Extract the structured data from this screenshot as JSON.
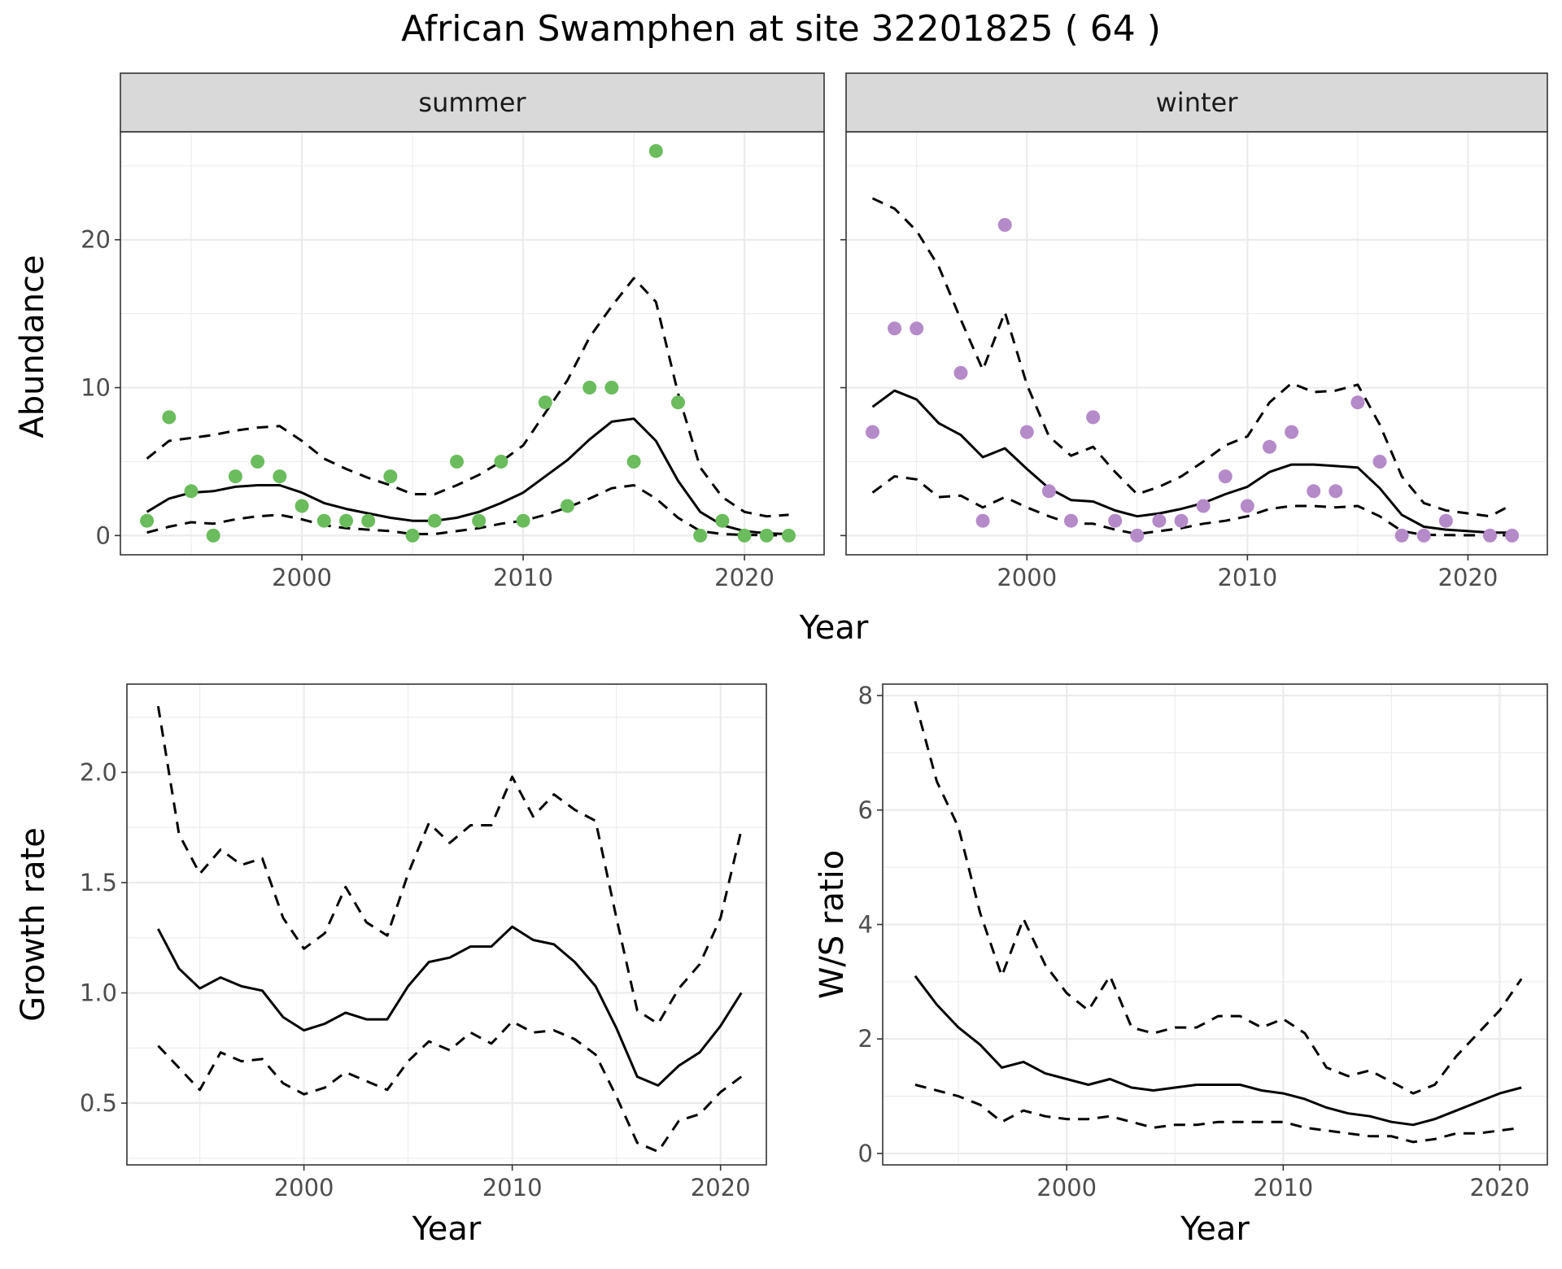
{
  "title": "African Swamphen at site 32201825 ( 64 )",
  "colors": {
    "summer_points": "#6abc5c",
    "winter_points": "#b58ac9",
    "lines": "#000000"
  },
  "chart_data": [
    {
      "id": "abundance-summer",
      "type": "scatter",
      "facet": "summer",
      "xlabel": "Year",
      "ylabel": "Abundance",
      "xlim": [
        1991.8,
        2023.6
      ],
      "ylim": [
        -1.3,
        27.3
      ],
      "xticks": [
        2000,
        2010,
        2020
      ],
      "yticks": [
        0,
        10,
        20
      ],
      "points": {
        "x": [
          1993,
          1994,
          1995,
          1996,
          1997,
          1998,
          1999,
          2000,
          2001,
          2002,
          2003,
          2004,
          2005,
          2006,
          2007,
          2008,
          2009,
          2010,
          2011,
          2012,
          2013,
          2014,
          2015,
          2016,
          2017,
          2018,
          2019,
          2020,
          2021,
          2022
        ],
        "y": [
          1,
          8,
          3,
          0,
          4,
          5,
          4,
          2,
          1,
          1,
          1,
          4,
          0,
          1,
          5,
          1,
          5,
          1,
          9,
          2,
          10,
          10,
          5,
          26,
          9,
          0,
          1,
          0,
          0,
          0
        ]
      },
      "fit": {
        "x": [
          1993,
          1994,
          1995,
          1996,
          1997,
          1998,
          1999,
          2000,
          2001,
          2002,
          2003,
          2004,
          2005,
          2006,
          2007,
          2008,
          2009,
          2010,
          2011,
          2012,
          2013,
          2014,
          2015,
          2016,
          2017,
          2018,
          2019,
          2020,
          2021,
          2022
        ],
        "y": [
          1.6,
          2.5,
          2.9,
          3.0,
          3.3,
          3.4,
          3.4,
          2.9,
          2.2,
          1.8,
          1.5,
          1.2,
          1.0,
          1.0,
          1.2,
          1.6,
          2.2,
          2.9,
          4.0,
          5.1,
          6.5,
          7.7,
          7.9,
          6.4,
          3.7,
          1.6,
          0.7,
          0.3,
          0.15,
          0.1
        ],
        "lower": [
          0.2,
          0.6,
          0.9,
          0.8,
          1.1,
          1.3,
          1.4,
          1.1,
          0.7,
          0.5,
          0.4,
          0.3,
          0.1,
          0.1,
          0.3,
          0.5,
          0.8,
          1.0,
          1.4,
          1.9,
          2.5,
          3.2,
          3.4,
          2.5,
          1.2,
          0.3,
          0.1,
          0.05,
          0.02,
          0.02
        ],
        "upper": [
          5.2,
          6.4,
          6.6,
          6.8,
          7.1,
          7.3,
          7.4,
          6.4,
          5.2,
          4.5,
          3.9,
          3.4,
          2.8,
          2.8,
          3.4,
          4.1,
          5.0,
          6.1,
          8.3,
          10.5,
          13.4,
          15.5,
          17.4,
          15.8,
          9.6,
          4.6,
          2.6,
          1.6,
          1.3,
          1.4
        ]
      }
    },
    {
      "id": "abundance-winter",
      "type": "scatter",
      "facet": "winter",
      "xlabel": "Year",
      "ylabel": "Abundance",
      "xlim": [
        1991.8,
        2023.6
      ],
      "ylim": [
        -1.3,
        27.3
      ],
      "xticks": [
        2000,
        2010,
        2020
      ],
      "yticks": [
        0,
        10,
        20
      ],
      "points": {
        "x": [
          1993,
          1994,
          1995,
          1997,
          1998,
          1999,
          2000,
          2001,
          2002,
          2003,
          2004,
          2005,
          2006,
          2007,
          2008,
          2009,
          2010,
          2011,
          2012,
          2013,
          2014,
          2015,
          2016,
          2017,
          2018,
          2019,
          2021,
          2022
        ],
        "y": [
          7,
          14,
          14,
          11,
          1,
          21,
          7,
          3,
          1,
          8,
          1,
          0,
          1,
          1,
          2,
          4,
          2,
          6,
          7,
          3,
          3,
          9,
          5,
          0,
          0,
          1,
          0,
          0
        ]
      },
      "fit": {
        "x": [
          1993,
          1994,
          1995,
          1996,
          1997,
          1998,
          1999,
          2000,
          2001,
          2002,
          2003,
          2004,
          2005,
          2006,
          2007,
          2008,
          2009,
          2010,
          2011,
          2012,
          2013,
          2014,
          2015,
          2016,
          2017,
          2018,
          2019,
          2020,
          2021,
          2022
        ],
        "y": [
          8.7,
          9.8,
          9.2,
          7.6,
          6.8,
          5.3,
          5.9,
          4.5,
          3.2,
          2.4,
          2.3,
          1.7,
          1.3,
          1.5,
          1.8,
          2.2,
          2.8,
          3.3,
          4.3,
          4.8,
          4.8,
          4.7,
          4.6,
          3.2,
          1.4,
          0.6,
          0.4,
          0.3,
          0.2,
          0.2
        ],
        "lower": [
          2.9,
          4.0,
          3.8,
          2.6,
          2.7,
          1.9,
          2.6,
          1.9,
          1.3,
          0.8,
          0.8,
          0.4,
          0.1,
          0.3,
          0.5,
          0.8,
          1.0,
          1.3,
          1.8,
          2.0,
          2.0,
          1.9,
          2.0,
          1.3,
          0.3,
          0.05,
          0.03,
          0.02,
          0.02,
          0.02
        ],
        "upper": [
          22.8,
          22.1,
          20.6,
          18.2,
          14.6,
          11.2,
          15.1,
          10.2,
          6.7,
          5.4,
          6.0,
          4.3,
          2.8,
          3.3,
          4.0,
          5.0,
          6.1,
          6.7,
          9.0,
          10.3,
          9.7,
          9.8,
          10.2,
          7.5,
          4.0,
          2.2,
          1.7,
          1.5,
          1.3,
          2.1
        ]
      }
    },
    {
      "id": "growth-rate",
      "type": "line",
      "xlabel": "Year",
      "ylabel": "Growth rate",
      "xlim": [
        1991.5,
        2022.2
      ],
      "ylim": [
        0.22,
        2.4
      ],
      "xticks": [
        2000,
        2010,
        2020
      ],
      "yticks": [
        0.5,
        1.0,
        1.5,
        2.0
      ],
      "ytick_labels": [
        "0.5",
        "1.0",
        "1.5",
        "2.0"
      ],
      "x": [
        1993,
        1994,
        1995,
        1996,
        1997,
        1998,
        1999,
        2000,
        2001,
        2002,
        2003,
        2004,
        2005,
        2006,
        2007,
        2008,
        2009,
        2010,
        2011,
        2012,
        2013,
        2014,
        2015,
        2016,
        2017,
        2018,
        2019,
        2020,
        2021
      ],
      "y": [
        1.29,
        1.11,
        1.02,
        1.07,
        1.03,
        1.01,
        0.89,
        0.83,
        0.86,
        0.91,
        0.88,
        0.88,
        1.03,
        1.14,
        1.16,
        1.21,
        1.21,
        1.3,
        1.24,
        1.22,
        1.14,
        1.03,
        0.84,
        0.62,
        0.58,
        0.67,
        0.73,
        0.85,
        1.0
      ],
      "lower": [
        0.76,
        0.66,
        0.56,
        0.73,
        0.69,
        0.7,
        0.59,
        0.54,
        0.57,
        0.64,
        0.6,
        0.56,
        0.69,
        0.78,
        0.74,
        0.82,
        0.77,
        0.87,
        0.82,
        0.83,
        0.79,
        0.72,
        0.53,
        0.32,
        0.28,
        0.42,
        0.45,
        0.55,
        0.62
      ],
      "upper": [
        2.3,
        1.72,
        1.54,
        1.65,
        1.58,
        1.61,
        1.34,
        1.2,
        1.27,
        1.48,
        1.32,
        1.26,
        1.54,
        1.77,
        1.68,
        1.76,
        1.76,
        1.98,
        1.8,
        1.9,
        1.83,
        1.78,
        1.34,
        0.92,
        0.86,
        1.02,
        1.13,
        1.34,
        1.74
      ]
    },
    {
      "id": "ws-ratio",
      "type": "line",
      "xlabel": "Year",
      "ylabel": "W/S ratio",
      "xlim": [
        1991.5,
        2022.2
      ],
      "ylim": [
        -0.2,
        8.2
      ],
      "xticks": [
        2000,
        2010,
        2020
      ],
      "yticks": [
        0,
        2,
        4,
        6,
        8
      ],
      "ytick_labels": [
        "0",
        "2",
        "4",
        "6",
        "8"
      ],
      "x": [
        1993,
        1994,
        1995,
        1996,
        1997,
        1998,
        1999,
        2000,
        2001,
        2002,
        2003,
        2004,
        2005,
        2006,
        2007,
        2008,
        2009,
        2010,
        2011,
        2012,
        2013,
        2014,
        2015,
        2016,
        2017,
        2018,
        2019,
        2020,
        2021
      ],
      "y": [
        3.1,
        2.6,
        2.2,
        1.9,
        1.5,
        1.6,
        1.4,
        1.3,
        1.2,
        1.3,
        1.15,
        1.1,
        1.15,
        1.2,
        1.2,
        1.2,
        1.1,
        1.05,
        0.95,
        0.8,
        0.7,
        0.65,
        0.55,
        0.5,
        0.6,
        0.75,
        0.9,
        1.05,
        1.15
      ],
      "lower": [
        1.2,
        1.1,
        1.0,
        0.85,
        0.55,
        0.75,
        0.65,
        0.6,
        0.6,
        0.65,
        0.55,
        0.45,
        0.5,
        0.5,
        0.55,
        0.55,
        0.55,
        0.55,
        0.45,
        0.4,
        0.35,
        0.3,
        0.3,
        0.2,
        0.25,
        0.35,
        0.35,
        0.4,
        0.45
      ],
      "upper": [
        7.9,
        6.5,
        5.7,
        4.2,
        3.1,
        4.1,
        3.3,
        2.8,
        2.5,
        3.1,
        2.2,
        2.1,
        2.2,
        2.2,
        2.4,
        2.4,
        2.2,
        2.35,
        2.1,
        1.5,
        1.35,
        1.45,
        1.25,
        1.05,
        1.2,
        1.7,
        2.1,
        2.5,
        3.05
      ]
    }
  ]
}
